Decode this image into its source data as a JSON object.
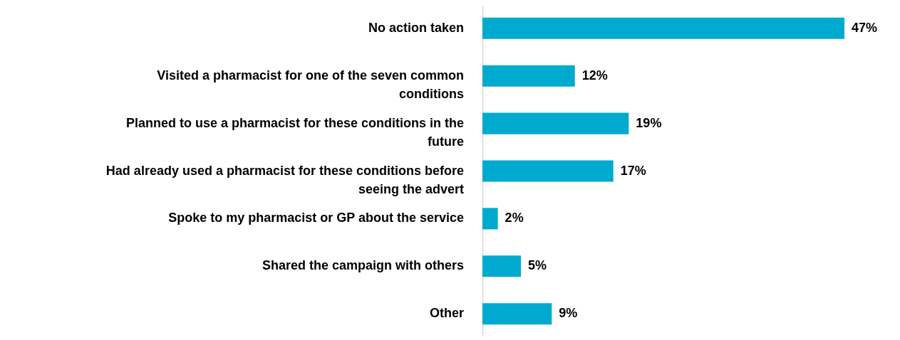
{
  "chart_data": {
    "type": "bar",
    "orientation": "horizontal",
    "categories": [
      "No action taken",
      "Visited a pharmacist for one of the seven common conditions",
      "Planned to use a pharmacist for these conditions in the future",
      "Had already used a pharmacist for these conditions before seeing the advert",
      "Spoke to my pharmacist or GP about the service",
      "Shared the campaign with others",
      "Other"
    ],
    "values": [
      47,
      12,
      19,
      17,
      2,
      5,
      9
    ],
    "value_labels": [
      "47%",
      "12%",
      "19%",
      "17%",
      "2%",
      "5%",
      "9%"
    ],
    "color": "#00aacf"
  }
}
